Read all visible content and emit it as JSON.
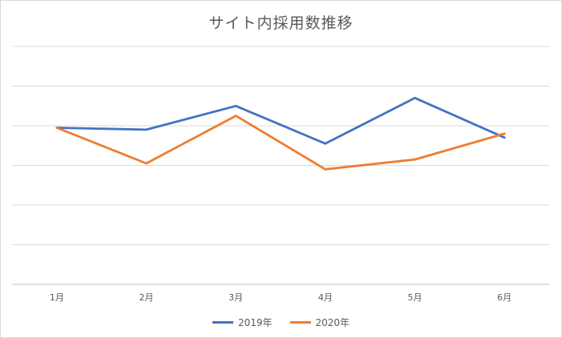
{
  "chart_data": {
    "type": "line",
    "title": "サイト内採用数推移",
    "categories": [
      "1月",
      "2月",
      "3月",
      "4月",
      "5月",
      "6月"
    ],
    "ylim": [
      0,
      6
    ],
    "grid": true,
    "legend_position": "bottom",
    "series": [
      {
        "name": "2019年",
        "color": "#4472c4",
        "values": [
          3.95,
          3.9,
          4.5,
          3.55,
          4.7,
          3.7
        ]
      },
      {
        "name": "2020年",
        "color": "#ed7d31",
        "values": [
          3.95,
          3.05,
          4.25,
          2.9,
          3.15,
          3.8
        ]
      }
    ]
  }
}
